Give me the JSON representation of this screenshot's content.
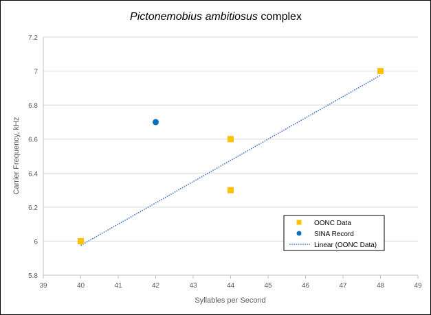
{
  "chart_data": {
    "type": "scatter",
    "title_italic": "Pictonemobius ambitiosus",
    "title_rest": " complex",
    "xlabel": "Syllables per Second",
    "ylabel": "Carrier Frequency, kHz",
    "xlim": [
      39,
      49
    ],
    "ylim": [
      5.8,
      7.2
    ],
    "x_ticks": [
      "39",
      "40",
      "41",
      "42",
      "43",
      "44",
      "45",
      "46",
      "47",
      "48",
      "49"
    ],
    "y_ticks": [
      "5.8",
      "6",
      "6.2",
      "6.4",
      "6.6",
      "6.8",
      "7",
      "7.2"
    ],
    "grid": "horizontal",
    "legend_position": "bottom-right",
    "series": [
      {
        "name": "OONC Data",
        "marker": "square",
        "color": "#FFC000",
        "points": [
          [
            40,
            6.0
          ],
          [
            44,
            6.6
          ],
          [
            44,
            6.3
          ],
          [
            48,
            7.0
          ]
        ]
      },
      {
        "name": "SINA Record",
        "marker": "circle",
        "color": "#0070C0",
        "points": [
          [
            42,
            6.7
          ]
        ]
      }
    ],
    "trendline": {
      "name": "Linear (OONC Data)",
      "style": "dotted",
      "color": "#4472C4",
      "from": [
        40,
        5.975
      ],
      "to": [
        48,
        6.975
      ]
    }
  }
}
